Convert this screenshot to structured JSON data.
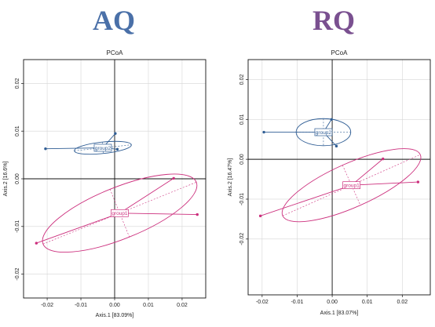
{
  "titles": {
    "left": "AQ",
    "right": "RQ",
    "left_color": "#4a70a8",
    "right_color": "#7a5090"
  },
  "colors": {
    "group1": "#cc2f7d",
    "group2": "#2f5d94"
  },
  "chart_data": [
    {
      "type": "scatter",
      "title": "PCoA",
      "xlabel": "Axis.1  [83.09%]",
      "ylabel": "Axis.2  [16.6%]",
      "xlim": [
        -0.027,
        0.027
      ],
      "ylim": [
        -0.025,
        0.025
      ],
      "x_ticks": [
        -0.02,
        -0.01,
        0.0,
        0.01,
        0.02
      ],
      "x_tick_labels": [
        "-0.02",
        "-0.01",
        "0.00",
        "0.01",
        "0.02"
      ],
      "y_ticks": [
        -0.02,
        -0.01,
        0.0,
        0.01,
        0.02
      ],
      "y_tick_labels": [
        "-0.02",
        "-0.01",
        "0.00",
        "0.01",
        "0.02"
      ],
      "grid": true,
      "reference_lines": {
        "x": 0,
        "y": 0
      },
      "series": [
        {
          "name": "group1",
          "centroid": [
            0.0015,
            -0.0072
          ],
          "points": [
            [
              -0.0232,
              -0.0135
            ],
            [
              0.0175,
              0.0001
            ],
            [
              0.0245,
              -0.0075
            ]
          ],
          "ellipse": {
            "center": [
              0.0015,
              -0.0072
            ],
            "semi_axes": [
              0.0245,
              0.0054
            ],
            "angle_deg": 22
          }
        },
        {
          "name": "group2",
          "centroid": [
            -0.0035,
            0.0065
          ],
          "points": [
            [
              -0.0205,
              0.0063
            ],
            [
              0.0002,
              0.0095
            ],
            [
              0.0008,
              0.0062
            ]
          ],
          "ellipse": {
            "center": [
              -0.0035,
              0.0065
            ],
            "semi_axes": [
              0.0085,
              0.0012
            ],
            "angle_deg": 6
          }
        }
      ]
    },
    {
      "type": "scatter",
      "title": "PCoA",
      "xlabel": "Axis.1  [83.07%]",
      "ylabel": "Axis.2  [16.47%]",
      "xlim": [
        -0.024,
        0.028
      ],
      "ylim": [
        -0.034,
        0.025
      ],
      "x_ticks": [
        -0.02,
        -0.01,
        0.0,
        0.01,
        0.02
      ],
      "x_tick_labels": [
        "-0.02",
        "-0.01",
        "0.00",
        "0.01",
        "0.02"
      ],
      "y_ticks": [
        -0.02,
        -0.01,
        0.0,
        0.01,
        0.02
      ],
      "y_tick_labels": [
        "-0.02",
        "-0.01",
        "0.00",
        "0.01",
        "0.02"
      ],
      "grid": true,
      "reference_lines": {
        "x": 0,
        "y": 0
      },
      "series": [
        {
          "name": "group1",
          "centroid": [
            0.0055,
            -0.0065
          ],
          "points": [
            [
              -0.0205,
              -0.0142
            ],
            [
              0.0145,
              0.0001
            ],
            [
              0.0245,
              -0.0057
            ]
          ],
          "ellipse": {
            "center": [
              0.0055,
              -0.0065
            ],
            "semi_axes": [
              0.0215,
              0.0055
            ],
            "angle_deg": 24
          }
        },
        {
          "name": "group2",
          "centroid": [
            -0.0025,
            0.0068
          ],
          "points": [
            [
              -0.0195,
              0.0068
            ],
            [
              -0.0002,
              0.01
            ],
            [
              0.0012,
              0.0033
            ]
          ],
          "ellipse": {
            "center": [
              -0.0025,
              0.0068
            ],
            "semi_axes": [
              0.0078,
              0.0034
            ],
            "angle_deg": 0
          }
        }
      ]
    }
  ]
}
